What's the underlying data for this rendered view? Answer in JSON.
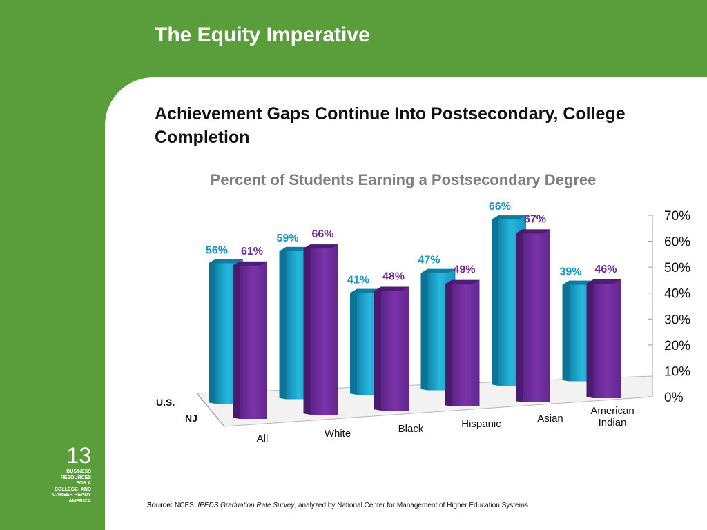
{
  "slide": {
    "title": "The Equity Imperative",
    "subtitle": "Achievement Gaps Continue Into Postsecondary, College Completion",
    "page_number": "13",
    "org_label": "BUSINESS\nRESOURCES\nFOR A\nCOLLEGE- AND\nCAREER READY\nAMERICA",
    "source_label": "Source:",
    "source_org": "NCES.",
    "source_title": "IPEDS Graduation Rate Survey",
    "source_rest": ", analyzed by National Center for Management of Higher Education Systems."
  },
  "colors": {
    "green": "#5a9e3c",
    "us_series": "#1aa7cc",
    "nj_series": "#6a2b9a",
    "us_label": "#1a95c0",
    "nj_label": "#6a2b9a"
  },
  "chart_data": {
    "type": "bar",
    "title": "Percent of Students Earning a Postsecondary Degree",
    "categories": [
      "All",
      "White",
      "Black",
      "Hispanic",
      "Asian",
      "American Indian"
    ],
    "series": [
      {
        "name": "U.S.",
        "values": [
          56,
          59,
          41,
          47,
          66,
          39
        ],
        "labels": [
          "56%",
          "59%",
          "41%",
          "47%",
          "66%",
          "39%"
        ]
      },
      {
        "name": "NJ",
        "values": [
          61,
          66,
          48,
          49,
          67,
          46
        ],
        "labels": [
          "61%",
          "66%",
          "48%",
          "49%",
          "67%",
          "46%"
        ]
      }
    ],
    "ylim": [
      0,
      70
    ],
    "yticks": [
      "0%",
      "10%",
      "20%",
      "30%",
      "40%",
      "50%",
      "60%",
      "70%"
    ],
    "legend": "series labels on depth axis, left",
    "grid": false
  }
}
